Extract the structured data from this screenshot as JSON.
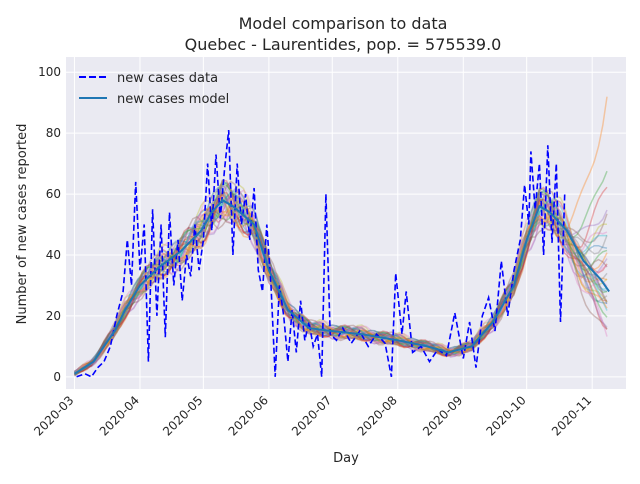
{
  "chart_data": {
    "type": "line",
    "title": "Model comparison to data",
    "subtitle": "Quebec - Laurentides, pop. = 575539.0",
    "xlabel": "Day",
    "ylabel": "Number of new cases reported",
    "x_type": "date",
    "xlim": [
      "2020-02-26",
      "2020-11-17"
    ],
    "ylim": [
      -4,
      105
    ],
    "grid": true,
    "legend_position": "top-left",
    "x_ticks": [
      "2020-03-01",
      "2020-04-01",
      "2020-05-01",
      "2020-06-01",
      "2020-07-01",
      "2020-08-01",
      "2020-09-01",
      "2020-10-01",
      "2020-11-01"
    ],
    "x_tick_labels": [
      "2020-03",
      "2020-04",
      "2020-05",
      "2020-06",
      "2020-07",
      "2020-08",
      "2020-09",
      "2020-10",
      "2020-11"
    ],
    "y_ticks": [
      0,
      20,
      40,
      60,
      80,
      100
    ],
    "y_tick_labels": [
      "0",
      "20",
      "40",
      "60",
      "80",
      "100"
    ],
    "series": [
      {
        "name": "new cases data",
        "style": "dashed",
        "color": "#0000ff",
        "points": [
          [
            "2020-03-02",
            0
          ],
          [
            "2020-03-06",
            1
          ],
          [
            "2020-03-09",
            0
          ],
          [
            "2020-03-12",
            3
          ],
          [
            "2020-03-15",
            5
          ],
          [
            "2020-03-18",
            10
          ],
          [
            "2020-03-21",
            20
          ],
          [
            "2020-03-24",
            28
          ],
          [
            "2020-03-26",
            45
          ],
          [
            "2020-03-28",
            30
          ],
          [
            "2020-03-30",
            64
          ],
          [
            "2020-04-01",
            35
          ],
          [
            "2020-04-03",
            50
          ],
          [
            "2020-04-05",
            5
          ],
          [
            "2020-04-07",
            55
          ],
          [
            "2020-04-09",
            20
          ],
          [
            "2020-04-11",
            50
          ],
          [
            "2020-04-13",
            13
          ],
          [
            "2020-04-15",
            54
          ],
          [
            "2020-04-17",
            30
          ],
          [
            "2020-04-19",
            45
          ],
          [
            "2020-04-21",
            25
          ],
          [
            "2020-04-23",
            40
          ],
          [
            "2020-04-25",
            33
          ],
          [
            "2020-04-27",
            50
          ],
          [
            "2020-04-29",
            35
          ],
          [
            "2020-05-01",
            45
          ],
          [
            "2020-05-03",
            70
          ],
          [
            "2020-05-05",
            48
          ],
          [
            "2020-05-07",
            73
          ],
          [
            "2020-05-09",
            52
          ],
          [
            "2020-05-11",
            68
          ],
          [
            "2020-05-13",
            81
          ],
          [
            "2020-05-15",
            40
          ],
          [
            "2020-05-17",
            70
          ],
          [
            "2020-05-19",
            50
          ],
          [
            "2020-05-21",
            60
          ],
          [
            "2020-05-23",
            45
          ],
          [
            "2020-05-25",
            62
          ],
          [
            "2020-05-27",
            35
          ],
          [
            "2020-05-29",
            28
          ],
          [
            "2020-05-31",
            50
          ],
          [
            "2020-06-02",
            30
          ],
          [
            "2020-06-04",
            0
          ],
          [
            "2020-06-06",
            30
          ],
          [
            "2020-06-08",
            20
          ],
          [
            "2020-06-10",
            5
          ],
          [
            "2020-06-12",
            22
          ],
          [
            "2020-06-14",
            8
          ],
          [
            "2020-06-16",
            25
          ],
          [
            "2020-06-18",
            12
          ],
          [
            "2020-06-20",
            18
          ],
          [
            "2020-06-22",
            10
          ],
          [
            "2020-06-24",
            14
          ],
          [
            "2020-06-26",
            0
          ],
          [
            "2020-06-28",
            60
          ],
          [
            "2020-06-30",
            14
          ],
          [
            "2020-07-03",
            12
          ],
          [
            "2020-07-06",
            16
          ],
          [
            "2020-07-10",
            11
          ],
          [
            "2020-07-14",
            15
          ],
          [
            "2020-07-18",
            10
          ],
          [
            "2020-07-22",
            14
          ],
          [
            "2020-07-26",
            11
          ],
          [
            "2020-07-29",
            0
          ],
          [
            "2020-07-31",
            34
          ],
          [
            "2020-08-03",
            14
          ],
          [
            "2020-08-05",
            28
          ],
          [
            "2020-08-08",
            8
          ],
          [
            "2020-08-12",
            10
          ],
          [
            "2020-08-16",
            5
          ],
          [
            "2020-08-20",
            9
          ],
          [
            "2020-08-24",
            7
          ],
          [
            "2020-08-28",
            21
          ],
          [
            "2020-09-01",
            6
          ],
          [
            "2020-09-04",
            18
          ],
          [
            "2020-09-07",
            3
          ],
          [
            "2020-09-10",
            20
          ],
          [
            "2020-09-13",
            26
          ],
          [
            "2020-09-16",
            15
          ],
          [
            "2020-09-19",
            38
          ],
          [
            "2020-09-22",
            20
          ],
          [
            "2020-09-25",
            35
          ],
          [
            "2020-09-28",
            45
          ],
          [
            "2020-09-30",
            63
          ],
          [
            "2020-10-02",
            50
          ],
          [
            "2020-10-03",
            74
          ],
          [
            "2020-10-05",
            55
          ],
          [
            "2020-10-07",
            70
          ],
          [
            "2020-10-09",
            40
          ],
          [
            "2020-10-11",
            76
          ],
          [
            "2020-10-13",
            44
          ],
          [
            "2020-10-15",
            70
          ],
          [
            "2020-10-17",
            18
          ],
          [
            "2020-10-19",
            60
          ]
        ]
      },
      {
        "name": "new cases model",
        "style": "solid",
        "color": "#1f77b4",
        "points": [
          [
            "2020-03-01",
            1
          ],
          [
            "2020-03-10",
            5
          ],
          [
            "2020-03-20",
            15
          ],
          [
            "2020-03-25",
            22
          ],
          [
            "2020-04-01",
            30
          ],
          [
            "2020-04-10",
            36
          ],
          [
            "2020-04-20",
            41
          ],
          [
            "2020-04-30",
            48
          ],
          [
            "2020-05-05",
            54
          ],
          [
            "2020-05-10",
            58
          ],
          [
            "2020-05-15",
            56
          ],
          [
            "2020-05-25",
            50
          ],
          [
            "2020-06-01",
            35
          ],
          [
            "2020-06-10",
            22
          ],
          [
            "2020-06-20",
            16
          ],
          [
            "2020-07-01",
            15
          ],
          [
            "2020-07-15",
            14
          ],
          [
            "2020-08-01",
            12
          ],
          [
            "2020-08-15",
            10
          ],
          [
            "2020-08-25",
            8
          ],
          [
            "2020-09-05",
            10
          ],
          [
            "2020-09-15",
            18
          ],
          [
            "2020-09-25",
            30
          ],
          [
            "2020-10-01",
            45
          ],
          [
            "2020-10-07",
            56
          ],
          [
            "2020-10-12",
            54
          ],
          [
            "2020-10-20",
            48
          ],
          [
            "2020-10-28",
            38
          ],
          [
            "2020-11-05",
            32
          ],
          [
            "2020-11-09",
            28
          ]
        ]
      }
    ],
    "ensemble": {
      "alpha": 0.35,
      "colors": [
        "#ff7f0e",
        "#2ca02c",
        "#d62728",
        "#9467bd",
        "#8c564b",
        "#e377c2",
        "#7f7f7f",
        "#bcbd22",
        "#17becf",
        "#1f77b4"
      ],
      "endpoints": [
        100,
        72,
        63,
        58,
        55,
        52,
        50,
        48,
        46,
        44,
        42,
        41,
        40,
        38,
        36,
        35,
        34,
        33,
        32,
        31,
        30,
        29,
        28,
        27,
        26,
        25,
        24,
        23,
        22,
        21,
        20,
        19,
        18,
        16,
        14,
        12
      ]
    }
  }
}
